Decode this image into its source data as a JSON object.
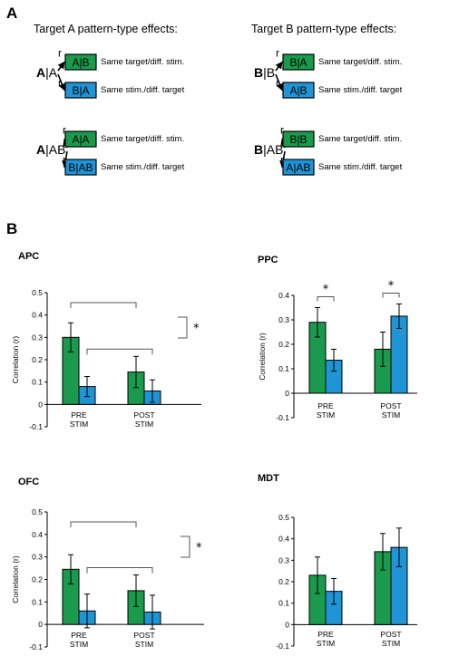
{
  "panel_a": {
    "letter": "A",
    "colors": {
      "green": "#1a9a4c",
      "blue": "#2095d6"
    },
    "groups": [
      {
        "header": "Target A pattern-type effects:",
        "rows": [
          {
            "source_bold": "A",
            "source_rest": "|A",
            "arrows": [
              {
                "r": "r",
                "box": "A|B",
                "color": "green",
                "label": "Same target/diff. stim."
              },
              {
                "r": "r",
                "box": "B|A",
                "color": "blue",
                "label": "Same stim./diff. target"
              }
            ]
          },
          {
            "source_bold": "A",
            "source_rest": "|AB",
            "arrows": [
              {
                "r": "r",
                "box": "A|A",
                "color": "green",
                "label": "Same target/diff. stim."
              },
              {
                "r": "r",
                "box": "B|AB",
                "color": "blue",
                "label": "Same stim./diff. target"
              }
            ]
          }
        ]
      },
      {
        "header": "Target B pattern-type effects:",
        "rows": [
          {
            "source_bold": "B",
            "source_rest": "|B",
            "arrows": [
              {
                "r": "r",
                "box": "B|A",
                "color": "green",
                "label": "Same target/diff. stim."
              },
              {
                "r": "r",
                "box": "A|B",
                "color": "blue",
                "label": "Same stim./diff. target"
              }
            ]
          },
          {
            "source_bold": "B",
            "source_rest": "|AB",
            "arrows": [
              {
                "r": "r",
                "box": "B|B",
                "color": "green",
                "label": "Same target/diff. stim."
              },
              {
                "r": "r",
                "box": "A|AB",
                "color": "blue",
                "label": "Same stim./diff. target"
              }
            ]
          }
        ]
      }
    ]
  },
  "panel_b": {
    "letter": "B"
  },
  "chart_data": [
    {
      "type": "bar",
      "title": "APC",
      "ylabel": "Correlation (r)",
      "ylim": [
        -0.1,
        0.5
      ],
      "yticks": [
        "-0.1",
        "0",
        "0.1",
        "0.2",
        "0.3",
        "0.4",
        "0.5"
      ],
      "categories": [
        "PRE STIM",
        "POST STIM"
      ],
      "series": [
        {
          "color": "#1a9a4c",
          "values": [
            0.3,
            0.145
          ],
          "errors": [
            0.065,
            0.07
          ]
        },
        {
          "color": "#2095d6",
          "values": [
            0.08,
            0.06
          ],
          "errors": [
            0.045,
            0.05
          ]
        }
      ],
      "significance": [
        {
          "type": "between-groups",
          "label": ""
        },
        {
          "type": "between-groups",
          "label": ""
        },
        {
          "type": "side",
          "label": "*"
        }
      ]
    },
    {
      "type": "bar",
      "title": "PPC",
      "ylabel": "Correlation (r)",
      "ylim": [
        -0.1,
        0.4
      ],
      "yticks": [
        "-0.1",
        "0",
        "0.1",
        "0.2",
        "0.3",
        "0.4"
      ],
      "categories": [
        "PRE STIM",
        "POST STIM"
      ],
      "series": [
        {
          "color": "#1a9a4c",
          "values": [
            0.29,
            0.18
          ],
          "errors": [
            0.06,
            0.07
          ]
        },
        {
          "color": "#2095d6",
          "values": [
            0.135,
            0.315
          ],
          "errors": [
            0.045,
            0.05
          ]
        }
      ],
      "significance": [
        {
          "type": "within-group",
          "label": "*"
        },
        {
          "type": "within-group",
          "label": "*"
        }
      ]
    },
    {
      "type": "bar",
      "title": "OFC",
      "ylabel": "Correlation (r)",
      "ylim": [
        -0.1,
        0.5
      ],
      "yticks": [
        "-0.1",
        "0",
        "0.1",
        "0.2",
        "0.3",
        "0.4",
        "0.5"
      ],
      "categories": [
        "PRE STIM",
        "POST STIM"
      ],
      "series": [
        {
          "color": "#1a9a4c",
          "values": [
            0.245,
            0.15
          ],
          "errors": [
            0.065,
            0.07
          ]
        },
        {
          "color": "#2095d6",
          "values": [
            0.06,
            0.055
          ],
          "errors": [
            0.075,
            0.075
          ]
        }
      ],
      "significance": [
        {
          "type": "between-groups",
          "label": ""
        },
        {
          "type": "between-groups",
          "label": ""
        },
        {
          "type": "side",
          "label": "*"
        }
      ]
    },
    {
      "type": "bar",
      "title": "MDT",
      "ylabel": "",
      "ylim": [
        -0.1,
        0.5
      ],
      "yticks": [
        "-0.1",
        "0",
        "0.1",
        "0.2",
        "0.3",
        "0.4",
        "0.5"
      ],
      "categories": [
        "PRE STIM",
        "POST STIM"
      ],
      "series": [
        {
          "color": "#1a9a4c",
          "values": [
            0.23,
            0.34
          ],
          "errors": [
            0.085,
            0.085
          ]
        },
        {
          "color": "#2095d6",
          "values": [
            0.155,
            0.36
          ],
          "errors": [
            0.06,
            0.09
          ]
        }
      ],
      "significance": []
    }
  ]
}
